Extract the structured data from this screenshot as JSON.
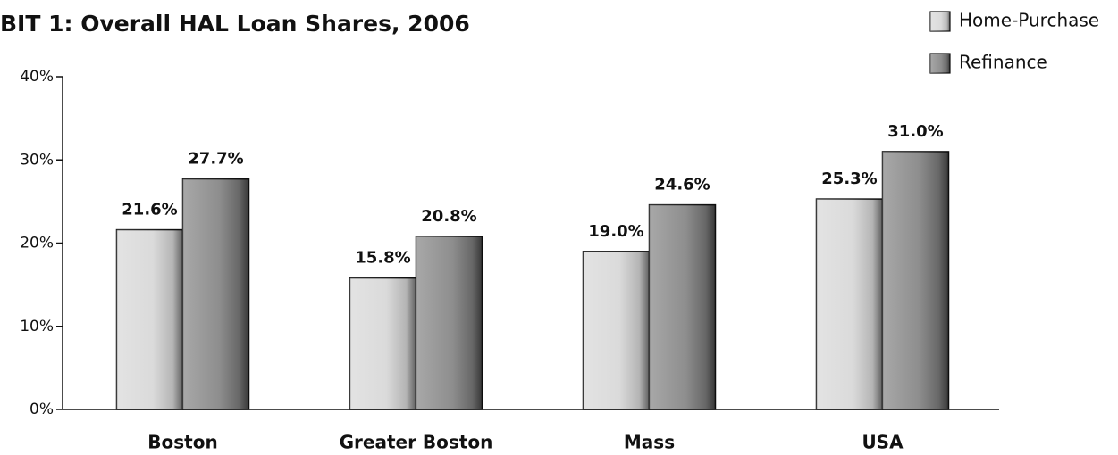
{
  "chart_data": {
    "type": "bar",
    "title": "BIT 1: Overall HAL Loan Shares, 2006",
    "categories": [
      "Boston",
      "Greater Boston",
      "Mass",
      "USA"
    ],
    "series": [
      {
        "name": "Home-Purchase",
        "color": "#d4d4d4",
        "values": [
          21.6,
          15.8,
          19.0,
          25.3
        ],
        "value_labels": [
          "21.6%",
          "15.8%",
          "19.0%",
          "25.3%"
        ]
      },
      {
        "name": "Refinance",
        "color": "#7a7a7a",
        "values": [
          27.7,
          20.8,
          24.6,
          31.0
        ],
        "value_labels": [
          "27.7%",
          "20.8%",
          "24.6%",
          "31.0%"
        ]
      }
    ],
    "ylim": [
      0,
      40
    ],
    "yticks": [
      {
        "value": 0,
        "label": "0%"
      },
      {
        "value": 10,
        "label": "10%"
      },
      {
        "value": 20,
        "label": "20%"
      },
      {
        "value": 30,
        "label": "30%"
      },
      {
        "value": 40,
        "label": "40%"
      }
    ],
    "legend": "top-right"
  }
}
